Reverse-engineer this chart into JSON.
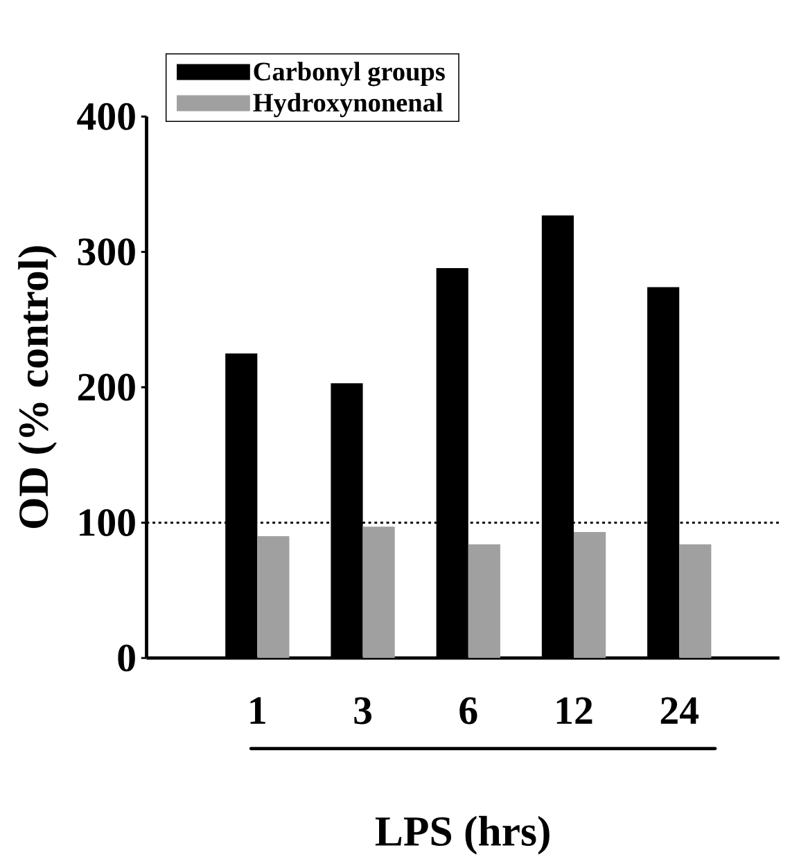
{
  "chart_data": {
    "type": "bar",
    "xlabel": "LPS (hrs)",
    "ylabel": "OD (% control)",
    "categories": [
      "1",
      "3",
      "6",
      "12",
      "24"
    ],
    "series": [
      {
        "name": "Carbonyl groups",
        "color": "#000000",
        "values": [
          225,
          203,
          288,
          327,
          274
        ]
      },
      {
        "name": "Hydroxynonenal",
        "color": "#a0a0a0",
        "values": [
          90,
          97,
          84,
          93,
          84
        ]
      }
    ],
    "ylim": [
      0,
      400
    ],
    "yticks": [
      0,
      100,
      200,
      300,
      400
    ],
    "ref_lines": [
      {
        "axis": "y",
        "value": 100,
        "line_style": "dotted",
        "color": "#000000"
      }
    ],
    "legend": "top left"
  }
}
